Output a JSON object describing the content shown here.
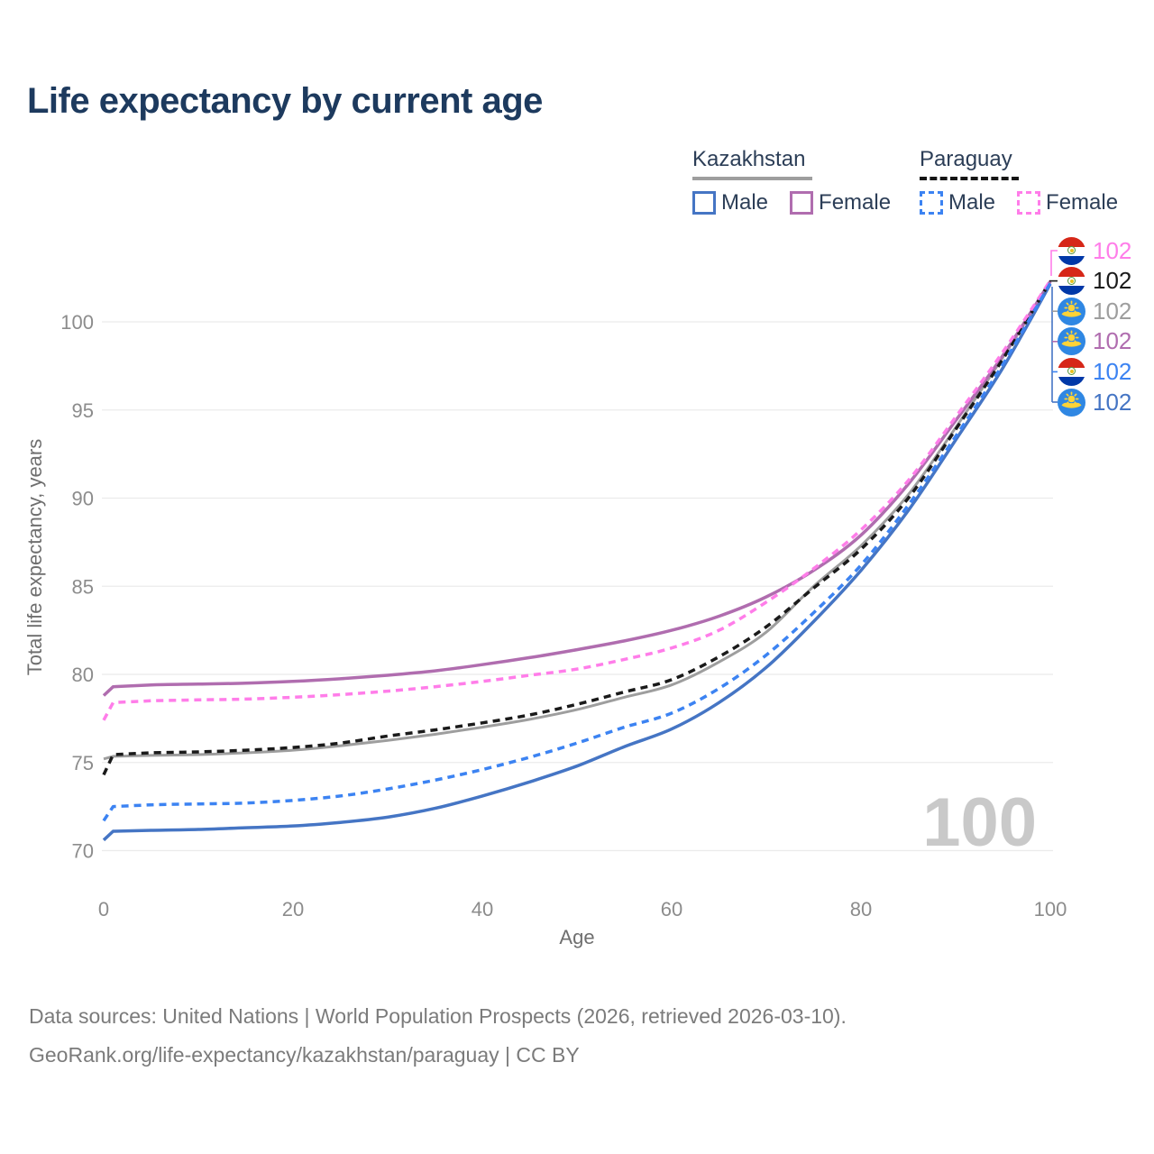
{
  "title": "Life expectancy by current age",
  "legend": {
    "kazakhstan": {
      "name": "Kazakhstan",
      "male": "Male",
      "female": "Female"
    },
    "paraguay": {
      "name": "Paraguay",
      "male": "Male",
      "female": "Female"
    }
  },
  "axes": {
    "x_title": "Age",
    "y_title": "Total life expectancy, years",
    "x_ticks": [
      0,
      20,
      40,
      60,
      80,
      100
    ],
    "y_ticks": [
      70,
      75,
      80,
      85,
      90,
      95,
      100
    ]
  },
  "watermark": "100",
  "footer": {
    "line1": "Data sources: United Nations | World Population Prospects (2026, retrieved 2026-03-10).",
    "line2": "GeoRank.org/life-expectancy/kazakhstan/paraguay | CC BY"
  },
  "colors": {
    "kazakhstan_male": "#4575c4",
    "kazakhstan_female": "#b06daf",
    "kazakhstan_total": "#9e9e9e",
    "paraguay_male": "#3c83f2",
    "paraguay_female": "#ff7de9",
    "paraguay_total": "#1a1a1a",
    "gridline": "#ebebeb",
    "title_text": "#1d3a5e",
    "kz_flag_bg": "#2f87e3",
    "py_flag_red": "#d62718",
    "py_flag_blue": "#0038a8"
  },
  "chart_data": {
    "type": "line",
    "title": "Life expectancy by current age",
    "xlabel": "Age",
    "ylabel": "Total life expectancy, years",
    "xlim": [
      0,
      100
    ],
    "ylim": [
      68.5,
      103
    ],
    "grid": "horizontal",
    "x": [
      0,
      1,
      5,
      10,
      15,
      20,
      25,
      30,
      35,
      40,
      45,
      50,
      55,
      60,
      65,
      70,
      75,
      80,
      85,
      90,
      95,
      100
    ],
    "series": [
      {
        "name": "Kazakhstan Total",
        "country": "Kazakhstan",
        "sex": "Total",
        "style": "solid",
        "color": "#9e9e9e",
        "values": [
          75.2,
          75.35,
          75.4,
          75.45,
          75.55,
          75.7,
          75.95,
          76.25,
          76.6,
          77.0,
          77.45,
          78.0,
          78.7,
          79.4,
          80.7,
          82.4,
          85.0,
          87.3,
          90.2,
          94.0,
          98.0,
          102.25
        ]
      },
      {
        "name": "Kazakhstan Female",
        "country": "Kazakhstan",
        "sex": "Female",
        "style": "solid",
        "color": "#b06daf",
        "values": [
          78.8,
          79.3,
          79.4,
          79.45,
          79.5,
          79.6,
          79.75,
          79.95,
          80.2,
          80.55,
          80.95,
          81.4,
          81.9,
          82.5,
          83.3,
          84.4,
          85.9,
          87.9,
          90.8,
          94.4,
          98.1,
          102.3
        ]
      },
      {
        "name": "Kazakhstan Male",
        "country": "Kazakhstan",
        "sex": "Male",
        "style": "solid",
        "color": "#4575c4",
        "values": [
          70.6,
          71.1,
          71.15,
          71.2,
          71.3,
          71.4,
          71.6,
          71.9,
          72.4,
          73.1,
          73.9,
          74.8,
          75.9,
          76.9,
          78.4,
          80.4,
          83.0,
          85.9,
          89.3,
          93.3,
          97.4,
          102.15
        ]
      },
      {
        "name": "Paraguay Total",
        "country": "Paraguay",
        "sex": "Total",
        "style": "dashed",
        "color": "#1a1a1a",
        "values": [
          74.3,
          75.45,
          75.55,
          75.6,
          75.7,
          75.85,
          76.1,
          76.5,
          76.85,
          77.25,
          77.7,
          78.3,
          79.0,
          79.7,
          81.0,
          82.7,
          84.9,
          87.1,
          90.0,
          93.9,
          97.9,
          102.3
        ]
      },
      {
        "name": "Paraguay Female",
        "country": "Paraguay",
        "sex": "Female",
        "style": "dashed",
        "color": "#ff7de9",
        "values": [
          77.4,
          78.4,
          78.5,
          78.55,
          78.6,
          78.7,
          78.85,
          79.05,
          79.3,
          79.6,
          79.95,
          80.3,
          80.85,
          81.5,
          82.5,
          84.1,
          86.0,
          88.2,
          91.0,
          94.6,
          98.3,
          102.35
        ]
      },
      {
        "name": "Paraguay Male",
        "country": "Paraguay",
        "sex": "Male",
        "style": "dashed",
        "color": "#3c83f2",
        "values": [
          71.7,
          72.5,
          72.6,
          72.65,
          72.7,
          72.85,
          73.1,
          73.5,
          74.0,
          74.6,
          75.3,
          76.1,
          77.0,
          77.8,
          79.2,
          81.1,
          83.5,
          86.2,
          89.6,
          93.5,
          97.6,
          102.2
        ]
      }
    ],
    "end_labels": [
      {
        "series": "Paraguay Female",
        "flag": "py",
        "value": "102",
        "color": "#ff7de9"
      },
      {
        "series": "Paraguay Total",
        "flag": "py",
        "value": "102",
        "color": "#1a1a1a"
      },
      {
        "series": "Kazakhstan Total",
        "flag": "kz",
        "value": "102",
        "color": "#9e9e9e"
      },
      {
        "series": "Kazakhstan Female",
        "flag": "kz",
        "value": "102",
        "color": "#b06daf"
      },
      {
        "series": "Paraguay Male",
        "flag": "py",
        "value": "102",
        "color": "#3c83f2"
      },
      {
        "series": "Kazakhstan Male",
        "flag": "kz",
        "value": "102",
        "color": "#4575c4"
      }
    ],
    "legend_position": "top-right"
  }
}
